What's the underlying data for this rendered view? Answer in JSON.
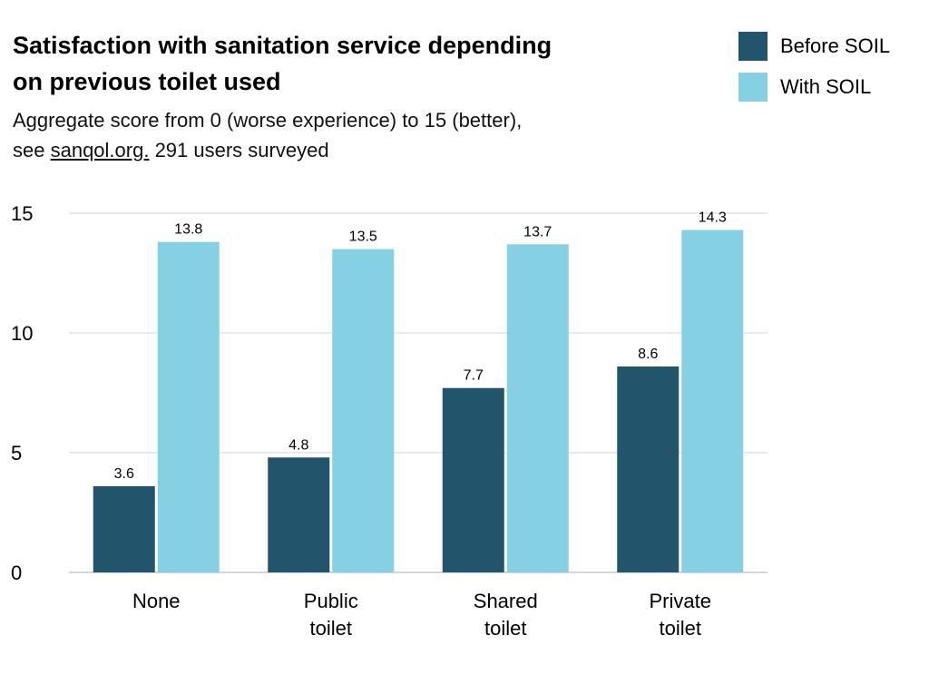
{
  "header": {
    "title_line1": "Satisfaction with sanitation service depending",
    "title_line2": "on previous toilet used",
    "subtitle_line1": "Aggregate score from 0 (worse experience) to 15 (better),",
    "subtitle_pre": "see ",
    "subtitle_link": "sanqol.org.",
    "subtitle_post": " 291 users surveyed"
  },
  "legend": {
    "items": [
      {
        "label": "Before SOIL",
        "color": "#22546c"
      },
      {
        "label": "With SOIL",
        "color": "#86d0e4"
      }
    ]
  },
  "chart_data": {
    "type": "bar",
    "title": "Satisfaction with sanitation service depending on previous toilet used",
    "subtitle": "Aggregate score from 0 (worse experience) to 15 (better), see sanqol.org. 291 users surveyed",
    "categories": [
      [
        "None"
      ],
      [
        "Public",
        "toilet"
      ],
      [
        "Shared",
        "toilet"
      ],
      [
        "Private",
        "toilet"
      ]
    ],
    "series": [
      {
        "name": "Before SOIL",
        "color": "#22546c",
        "values": [
          3.6,
          4.8,
          7.7,
          8.6
        ]
      },
      {
        "name": "With SOIL",
        "color": "#86d0e4",
        "values": [
          13.8,
          13.5,
          13.7,
          14.3
        ]
      }
    ],
    "ylim": [
      0,
      15
    ],
    "yticks": [
      0,
      5,
      10,
      15
    ],
    "grid": true,
    "legend_position": "top-right",
    "xlabel": "",
    "ylabel": ""
  }
}
